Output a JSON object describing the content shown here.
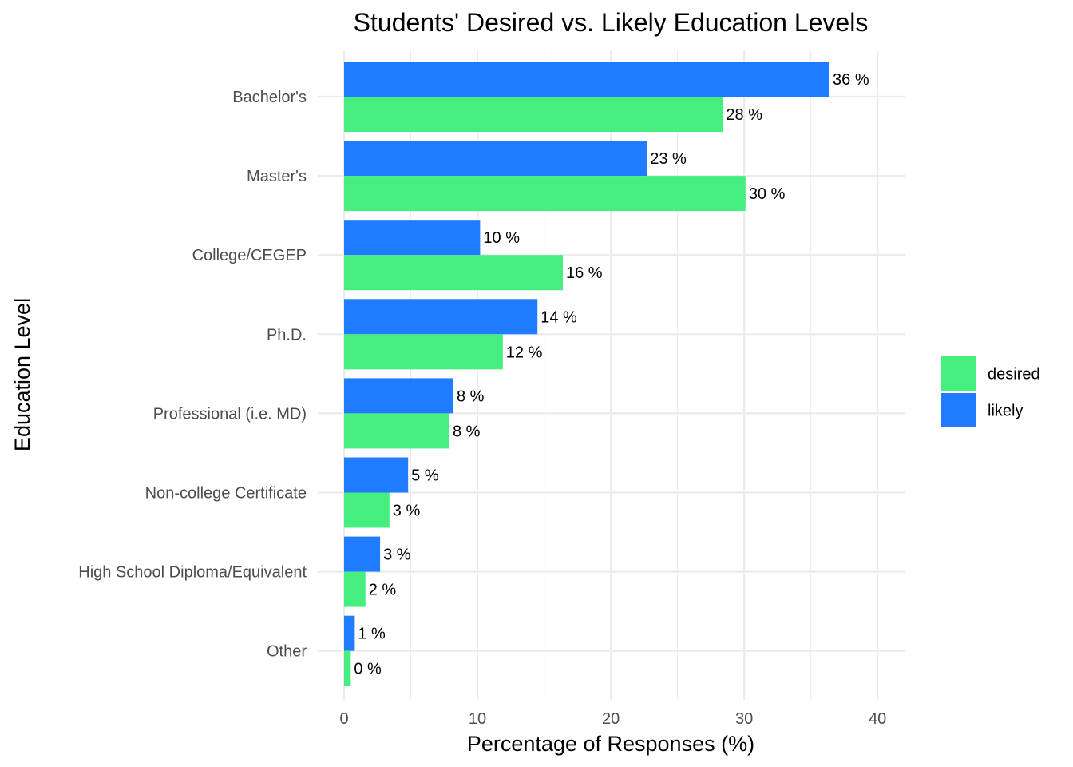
{
  "chart_data": {
    "type": "bar",
    "orientation": "horizontal",
    "title": "Students' Desired vs. Likely Education Levels",
    "xlabel": "Percentage of Responses (%)",
    "ylabel": "Education Level",
    "categories": [
      "Bachelor's",
      "Master's",
      "College/CEGEP",
      "Ph.D.",
      "Professional (i.e. MD)",
      "Non-college Certificate",
      "High School Diploma/Equivalent",
      "Other"
    ],
    "series": [
      {
        "name": "likely",
        "color": "#1F7BFF",
        "values": [
          36.4,
          22.7,
          10.2,
          14.5,
          8.2,
          4.8,
          2.7,
          0.8
        ],
        "labels": [
          "36 %",
          "23 %",
          "10 %",
          "14 %",
          "8 %",
          "5 %",
          "3 %",
          "1 %"
        ]
      },
      {
        "name": "desired",
        "color": "#45EE7F",
        "values": [
          28.4,
          30.1,
          16.4,
          11.9,
          7.9,
          3.4,
          1.6,
          0.5
        ],
        "labels": [
          "28 %",
          "30 %",
          "16 %",
          "12 %",
          "8 %",
          "3 %",
          "2 %",
          "0 %"
        ]
      }
    ],
    "xlim": [
      0,
      42
    ],
    "xticks": [
      0,
      10,
      20,
      30,
      40
    ],
    "xtick_labels": [
      "0",
      "10",
      "20",
      "30",
      "40"
    ],
    "grid": true,
    "legend": {
      "position": "right",
      "entries": [
        {
          "name": "desired",
          "color": "#45EE7F"
        },
        {
          "name": "likely",
          "color": "#1F7BFF"
        }
      ]
    }
  }
}
